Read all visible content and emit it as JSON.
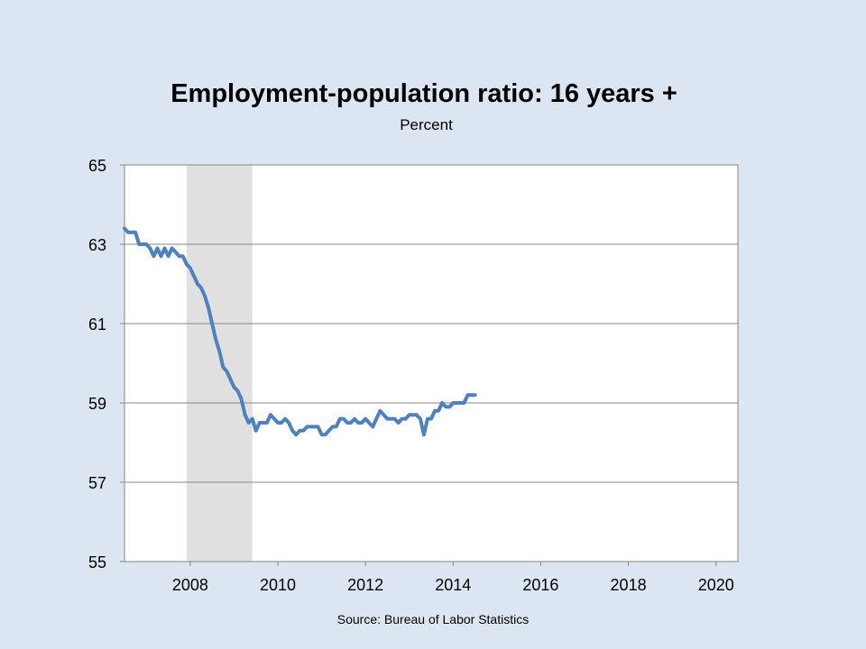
{
  "chart_data": {
    "type": "line",
    "title": "Employment-population ratio: 16 years +",
    "subtitle": "Percent",
    "source": "Source: Bureau of Labor Statistics",
    "xlim": [
      2006.5,
      2020.5
    ],
    "ylim": [
      55,
      65
    ],
    "yticks": [
      55,
      57,
      59,
      61,
      63,
      65
    ],
    "xticks": [
      2008,
      2010,
      2012,
      2014,
      2016,
      2018,
      2020
    ],
    "grid": true,
    "recession": [
      2007.917,
      2009.417
    ],
    "colors": {
      "line": "#4f81bd",
      "recession": "#e0e0e0",
      "background": "#dce6f2"
    },
    "series": [
      {
        "x": [
          2006.5,
          2006.583,
          2006.667,
          2006.75,
          2006.833,
          2006.917,
          2007.0,
          2007.083,
          2007.167,
          2007.25,
          2007.333,
          2007.417,
          2007.5,
          2007.583,
          2007.667,
          2007.75,
          2007.833,
          2007.917,
          2008.0,
          2008.083,
          2008.167,
          2008.25,
          2008.333,
          2008.417,
          2008.5,
          2008.583,
          2008.667,
          2008.75,
          2008.833,
          2008.917,
          2009.0,
          2009.083,
          2009.167,
          2009.25,
          2009.333,
          2009.417,
          2009.5,
          2009.583,
          2009.667,
          2009.75,
          2009.833,
          2009.917,
          2010.0,
          2010.083,
          2010.167,
          2010.25,
          2010.333,
          2010.417,
          2010.5,
          2010.583,
          2010.667,
          2010.75,
          2010.833,
          2010.917,
          2011.0,
          2011.083,
          2011.167,
          2011.25,
          2011.333,
          2011.417,
          2011.5,
          2011.583,
          2011.667,
          2011.75,
          2011.833,
          2011.917,
          2012.0,
          2012.083,
          2012.167,
          2012.25,
          2012.333,
          2012.417,
          2012.5,
          2012.583,
          2012.667,
          2012.75,
          2012.833,
          2012.917,
          2013.0,
          2013.083,
          2013.167,
          2013.25,
          2013.333,
          2013.417,
          2013.5,
          2013.583,
          2013.667,
          2013.75,
          2013.833,
          2013.917,
          2014.0,
          2014.083,
          2014.167,
          2014.25,
          2014.333,
          2014.417,
          2014.5
        ],
        "values": [
          63.4,
          63.3,
          63.3,
          63.3,
          63.0,
          63.0,
          63.0,
          62.9,
          62.7,
          62.9,
          62.7,
          62.9,
          62.7,
          62.9,
          62.8,
          62.7,
          62.7,
          62.5,
          62.4,
          62.2,
          62.0,
          61.9,
          61.7,
          61.4,
          61.0,
          60.6,
          60.3,
          59.9,
          59.8,
          59.6,
          59.4,
          59.3,
          59.1,
          58.7,
          58.5,
          58.6,
          58.3,
          58.5,
          58.5,
          58.5,
          58.7,
          58.6,
          58.5,
          58.5,
          58.6,
          58.5,
          58.3,
          58.2,
          58.3,
          58.3,
          58.4,
          58.4,
          58.4,
          58.4,
          58.2,
          58.2,
          58.3,
          58.4,
          58.4,
          58.6,
          58.6,
          58.5,
          58.5,
          58.6,
          58.5,
          58.5,
          58.6,
          58.5,
          58.4,
          58.6,
          58.8,
          58.7,
          58.6,
          58.6,
          58.6,
          58.5,
          58.6,
          58.6,
          58.7,
          58.7,
          58.7,
          58.6,
          58.2,
          58.6,
          58.6,
          58.8,
          58.8,
          59.0,
          58.9,
          58.9,
          59.0,
          59.0,
          59.0,
          59.0,
          59.2,
          59.2,
          59.2
        ]
      }
    ]
  }
}
